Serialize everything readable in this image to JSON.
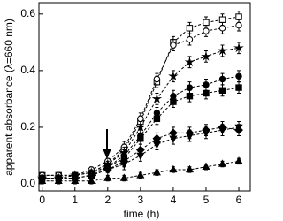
{
  "chart_data": {
    "type": "line",
    "x_label": "time (h)",
    "y_label": "apparent absorbance (λ=660 nm)",
    "x": [
      0,
      0.5,
      1,
      1.5,
      2,
      2.5,
      3,
      3.5,
      4,
      4.5,
      5,
      5.5,
      6
    ],
    "series": [
      {
        "color": "#000000",
        "marker": "square-open",
        "values": [
          0.03,
          0.03,
          0.03,
          0.04,
          0.07,
          0.12,
          0.22,
          0.36,
          0.5,
          0.55,
          0.57,
          0.58,
          0.59
        ],
        "errors": [
          0.01,
          0.01,
          0.01,
          0.01,
          0.01,
          0.02,
          0.02,
          0.02,
          0.02,
          0.02,
          0.02,
          0.02,
          0.02
        ]
      },
      {
        "color": "#000000",
        "marker": "circle-open",
        "values": [
          0.03,
          0.03,
          0.03,
          0.05,
          0.08,
          0.13,
          0.23,
          0.37,
          0.49,
          0.51,
          0.54,
          0.55,
          0.56
        ],
        "errors": [
          0.01,
          0.01,
          0.01,
          0.01,
          0.01,
          0.02,
          0.02,
          0.02,
          0.02,
          0.02,
          0.02,
          0.02,
          0.02
        ]
      },
      {
        "color": "#000000",
        "marker": "star",
        "values": [
          0.02,
          0.02,
          0.03,
          0.04,
          0.07,
          0.11,
          0.2,
          0.3,
          0.38,
          0.43,
          0.45,
          0.47,
          0.48
        ],
        "errors": [
          0.01,
          0.01,
          0.01,
          0.01,
          0.01,
          0.02,
          0.02,
          0.02,
          0.02,
          0.02,
          0.02,
          0.02,
          0.02
        ]
      },
      {
        "color": "#000000",
        "marker": "circle",
        "values": [
          0.02,
          0.02,
          0.03,
          0.04,
          0.06,
          0.1,
          0.17,
          0.25,
          0.31,
          0.34,
          0.35,
          0.37,
          0.38
        ],
        "errors": [
          0.01,
          0.01,
          0.01,
          0.01,
          0.01,
          0.02,
          0.02,
          0.02,
          0.02,
          0.02,
          0.02,
          0.02,
          0.02
        ]
      },
      {
        "color": "#000000",
        "marker": "square",
        "values": [
          0.02,
          0.02,
          0.02,
          0.03,
          0.06,
          0.09,
          0.16,
          0.23,
          0.29,
          0.31,
          0.32,
          0.33,
          0.34
        ],
        "errors": [
          0.01,
          0.01,
          0.01,
          0.01,
          0.01,
          0.02,
          0.02,
          0.02,
          0.02,
          0.02,
          0.02,
          0.02,
          0.02
        ]
      },
      {
        "color": "#000000",
        "marker": "diamond",
        "values": [
          0.02,
          0.02,
          0.02,
          0.03,
          0.05,
          0.08,
          0.12,
          0.16,
          0.18,
          0.18,
          0.19,
          0.2,
          0.19
        ],
        "errors": [
          0.01,
          0.01,
          0.01,
          0.01,
          0.01,
          0.02,
          0.02,
          0.02,
          0.02,
          0.02,
          0.02,
          0.02,
          0.02
        ]
      },
      {
        "color": "#000000",
        "marker": "triangle-down",
        "values": [
          0.02,
          0.02,
          0.02,
          0.03,
          0.05,
          0.07,
          0.1,
          0.14,
          0.16,
          0.17,
          0.18,
          0.19,
          0.2
        ],
        "errors": [
          0.01,
          0.01,
          0.01,
          0.01,
          0.01,
          0.02,
          0.02,
          0.02,
          0.02,
          0.02,
          0.02,
          0.02,
          0.02
        ]
      },
      {
        "color": "#000000",
        "marker": "triangle-up",
        "values": [
          0.01,
          0.01,
          0.01,
          0.01,
          0.02,
          0.02,
          0.03,
          0.04,
          0.05,
          0.05,
          0.06,
          0.07,
          0.08
        ],
        "errors": [
          0.01,
          0.01,
          0.01,
          0.01,
          0.01,
          0.01,
          0.01,
          0.01,
          0.01,
          0.01,
          0.01,
          0.01,
          0.01
        ]
      }
    ],
    "xlim": [
      -0.1,
      6.35
    ],
    "ylim": [
      -0.025,
      0.64
    ],
    "xticks": [
      0,
      1,
      2,
      3,
      4,
      5,
      6
    ],
    "yticks": [
      {
        "value": 0,
        "label": "0.0"
      },
      0.2,
      0.4,
      0.6
    ],
    "grid": false
  }
}
